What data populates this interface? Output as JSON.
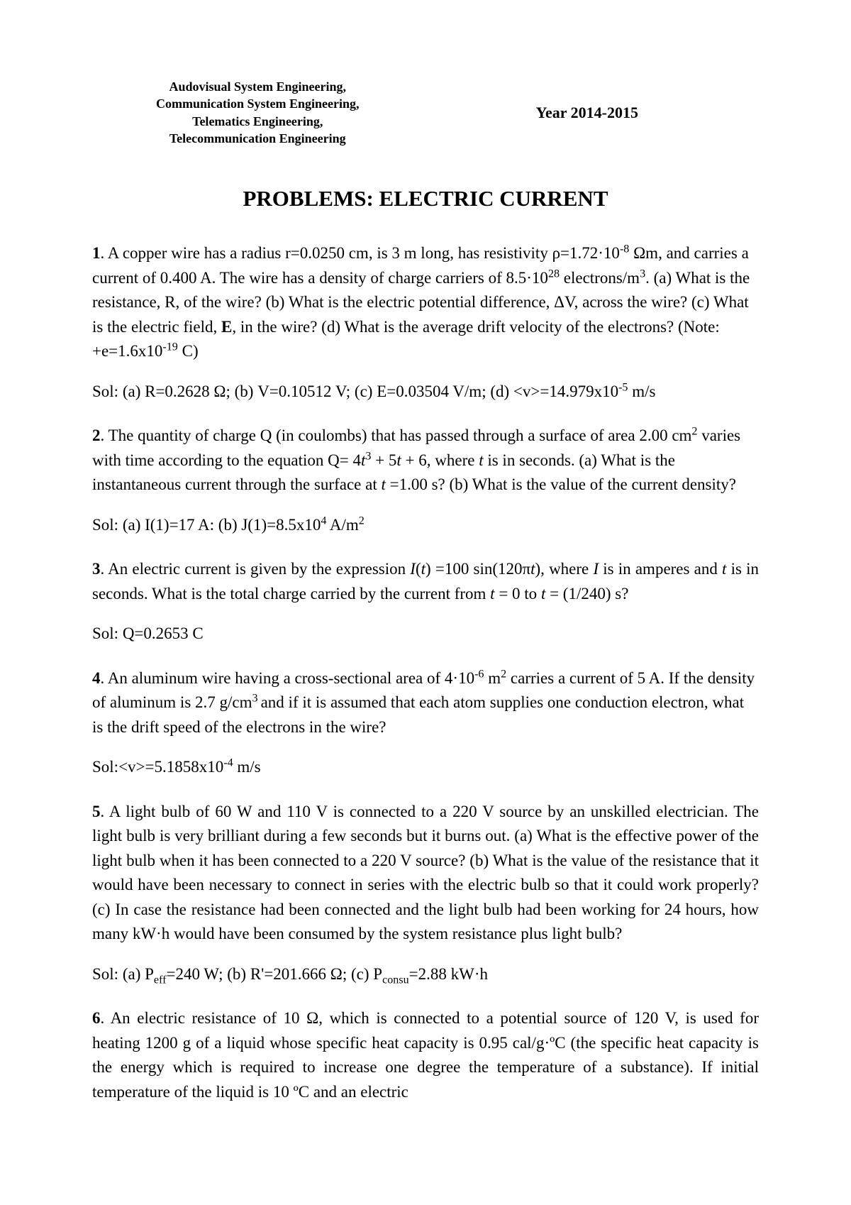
{
  "header": {
    "left_line1": "Audovisual System Engineering,",
    "left_line2": "Communication System Engineering,",
    "left_line3": "Telematics Engineering,",
    "left_line4": "Telecommunication Engineering",
    "right": "Year 2014-2015"
  },
  "title": "PROBLEMS: ELECTRIC CURRENT",
  "p1": {
    "num": "1",
    "a": ". A copper wire has a radius r=0.0250 cm, is 3 m long, has resistivity ρ=1.72·10",
    "b": " Ωm, and carries a current of 0.400 A. The wire has a density of charge carriers of 8.5·10",
    "c": " electrons/m",
    "d": ". (a) What is the resistance, R, of the wire? (b) What is the electric potential difference, ΔV, across the wire? (c) What is the electric field, ",
    "e": ", in the wire? (d) What is the average drift velocity of the electrons? (Note: +e=1.6x10",
    "f": " C)"
  },
  "s1": {
    "a": "Sol: (a) R=0.2628 Ω; (b) V=0.10512 V; (c) E=0.03504 V/m; (d) <v>=14.979x10",
    "b": " m/s"
  },
  "p2": {
    "num": "2",
    "a": ". The quantity of charge Q (in coulombs) that has passed through a surface of area 2.00 cm",
    "b": " varies with time according to the equation Q= 4",
    "c": " + 5",
    "d": " + 6, where ",
    "e": " is in seconds. (a) What is the instantaneous current through the surface at ",
    "f": " =1.00 s? (b) What is the value of the current density?"
  },
  "s2": {
    "a": "Sol: (a) I(1)=17 A: (b) J(1)=8.5x10",
    "b": " A/m"
  },
  "p3": {
    "num": "3",
    "a": ". An electric current is given by the expression ",
    "b": "(",
    "c": ") =100 sin(120π",
    "d": "), where ",
    "e": " is in amperes and ",
    "f": " is in seconds. What is the total charge carried by the current from ",
    "g": " = 0 to ",
    "h": " = (1/240) s?"
  },
  "s3": "Sol: Q=0.2653 C",
  "p4": {
    "num": "4",
    "a": ". An aluminum wire having a cross-sectional area of 4·10",
    "b": " m",
    "c": " carries a current of 5 A. If the density of aluminum is 2.7 g/cm",
    "d": " and if it is assumed that each atom supplies one conduction electron, what is the drift speed of the electrons in the wire?"
  },
  "s4": {
    "a": "Sol:<v>=5.1858x10",
    "b": " m/s"
  },
  "p5": {
    "num": "5",
    "a": ". A light bulb of 60 W and 110 V is connected to a 220 V source by an unskilled electrician. The light bulb is very brilliant during a few seconds but it burns out. (a) What is the effective power of the light bulb when it has been connected to a 220 V source? (b) What is the value of the resistance that it would have been necessary to connect in series with the electric bulb so that it could work properly? (c)  In case the resistance had been connected and the light bulb had been working for 24 hours, how many kW·h would have been consumed by the system resistance plus light bulb?"
  },
  "s5": {
    "a": "Sol: (a) P",
    "b": "=240 W; (b) R'=201.666 Ω; (c) P",
    "c": "=2.88 kW·h"
  },
  "p6": {
    "num": "6",
    "a": ". An electric resistance of 10 Ω,  which is connected to a potential source of 120 V, is used for heating 1200 g of a liquid whose specific heat capacity is 0.95 cal/g·ºC (the specific heat capacity is the energy which is required to increase one degree the temperature of a substance). If initial temperature of the liquid is 10 ºC and an electric"
  }
}
